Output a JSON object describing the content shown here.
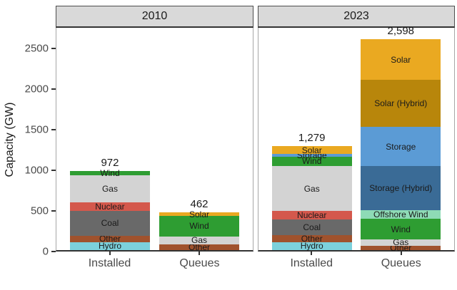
{
  "chart_data": {
    "type": "bar",
    "stacked": true,
    "title": "",
    "xlabel": "",
    "ylabel": "Capacity (GW)",
    "units": "GW",
    "grid": false,
    "legend_position": "none (labels drawn inside segments)",
    "y_axis": {
      "title": "Capacity (GW)",
      "ylim": [
        0,
        2750
      ],
      "ticks": [
        {
          "label": "0",
          "value": 0
        },
        {
          "label": "500",
          "value": 500
        },
        {
          "label": "1000",
          "value": 1000
        },
        {
          "label": "1500",
          "value": 1500
        },
        {
          "label": "2000",
          "value": 2000
        },
        {
          "label": "2500",
          "value": 2500
        }
      ]
    },
    "palette": {
      "Solar": "#EAA921",
      "Solar (Hybrid)": "#B8860B",
      "Storage": "#5B9BD5",
      "Storage (Hybrid)": "#3A6B96",
      "Offshore Wind": "#8EDBB6",
      "Wind": "#2E9D32",
      "Gas": "#D3D3D3",
      "Nuclear": "#D4584C",
      "Coal": "#696969",
      "Other": "#A0522D",
      "Hydro": "#7CD1DC"
    },
    "facets": [
      {
        "title": "2010",
        "categories": [
          "Installed",
          "Queues"
        ],
        "bars": [
          {
            "category": "Installed",
            "total": 972,
            "total_label": "972",
            "segments": [
              {
                "name": "Hydro",
                "value": 100,
                "color": "#7CD1DC",
                "label_visible": true
              },
              {
                "name": "Other",
                "value": 80,
                "color": "#A0522D",
                "label_visible": true
              },
              {
                "name": "Coal",
                "value": 305,
                "color": "#696969",
                "label_visible": true
              },
              {
                "name": "Nuclear",
                "value": 100,
                "color": "#D4584C",
                "label_visible": true
              },
              {
                "name": "Gas",
                "value": 340,
                "color": "#D3D3D3",
                "label_visible": true
              },
              {
                "name": "Wind",
                "value": 47,
                "color": "#2E9D32",
                "label_visible": true
              }
            ]
          },
          {
            "category": "Queues",
            "total": 462,
            "total_label": "462",
            "segments": [
              {
                "name": "Other",
                "value": 70,
                "color": "#A0522D",
                "label_visible": true
              },
              {
                "name": "Gas",
                "value": 100,
                "color": "#D3D3D3",
                "label_visible": true
              },
              {
                "name": "Wind",
                "value": 250,
                "color": "#2E9D32",
                "label_visible": true
              },
              {
                "name": "Solar",
                "value": 42,
                "color": "#EAA921",
                "label_visible": true
              }
            ]
          }
        ]
      },
      {
        "title": "2023",
        "categories": [
          "Installed",
          "Queues"
        ],
        "bars": [
          {
            "category": "Installed",
            "total": 1279,
            "total_label": "1,279",
            "segments": [
              {
                "name": "Hydro",
                "value": 101,
                "color": "#7CD1DC",
                "label_visible": true
              },
              {
                "name": "Other",
                "value": 88,
                "color": "#A0522D",
                "label_visible": true
              },
              {
                "name": "Coal",
                "value": 190,
                "color": "#696969",
                "label_visible": true
              },
              {
                "name": "Nuclear",
                "value": 103,
                "color": "#D4584C",
                "label_visible": true
              },
              {
                "name": "Gas",
                "value": 555,
                "color": "#D3D3D3",
                "label_visible": true
              },
              {
                "name": "Wind",
                "value": 117,
                "color": "#2E9D32",
                "label_visible": true
              },
              {
                "name": "Storage",
                "value": 30,
                "color": "#5B9BD5",
                "label_visible": true
              },
              {
                "name": "Solar",
                "value": 95,
                "color": "#EAA921",
                "label_visible": true
              }
            ]
          },
          {
            "category": "Queues",
            "total": 2598,
            "total_label": "2,598",
            "segments": [
              {
                "name": "Other",
                "value": 53,
                "color": "#A0522D",
                "label_visible": true
              },
              {
                "name": "Gas",
                "value": 80,
                "color": "#D3D3D3",
                "label_visible": true
              },
              {
                "name": "Wind",
                "value": 250,
                "color": "#2E9D32",
                "label_visible": true
              },
              {
                "name": "Offshore Wind",
                "value": 110,
                "color": "#8EDBB6",
                "label_visible": true
              },
              {
                "name": "Storage (Hybrid)",
                "value": 540,
                "color": "#3A6B96",
                "label_visible": true
              },
              {
                "name": "Storage",
                "value": 485,
                "color": "#5B9BD5",
                "label_visible": true
              },
              {
                "name": "Solar (Hybrid)",
                "value": 580,
                "color": "#B8860B",
                "label_visible": true
              },
              {
                "name": "Solar",
                "value": 500,
                "color": "#EAA921",
                "label_visible": true
              }
            ]
          }
        ]
      }
    ]
  }
}
